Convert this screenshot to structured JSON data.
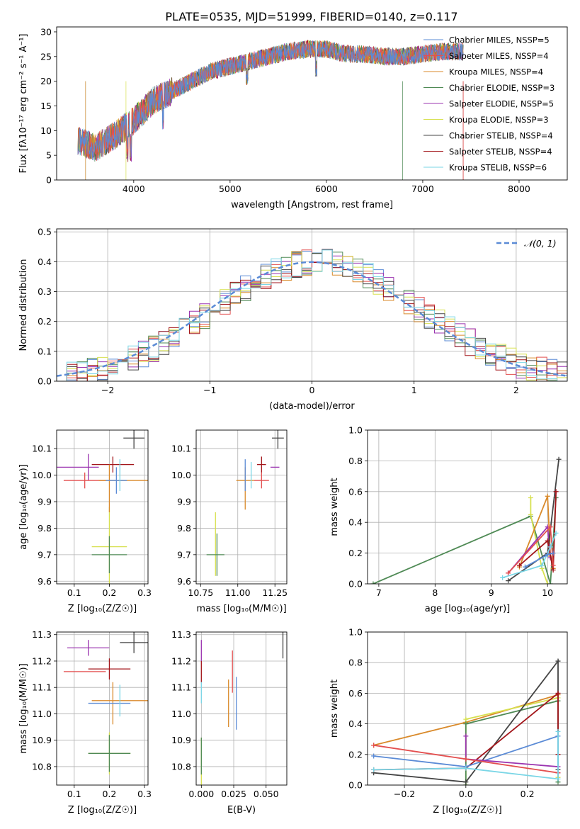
{
  "title": "PLATE=0535, MJD=51999, FIBERID=0140, z=0.117",
  "colors": [
    "#5b8bd6",
    "#e34f4f",
    "#d98a2b",
    "#4f8a55",
    "#9b34b0",
    "#d7e04f",
    "#444444",
    "#a3161b",
    "#7ad6e6"
  ],
  "chart_data": [
    {
      "id": "spectrum",
      "type": "line",
      "xlabel": "wavelength [Angstrom, rest frame]",
      "ylabel": "Flux [fλ10⁻¹⁷ erg cm⁻² s⁻¹ A⁻¹]",
      "xlim": [
        3200,
        8500
      ],
      "ylim": [
        0,
        31
      ],
      "xticks": [
        4000,
        5000,
        6000,
        7000,
        8000
      ],
      "yticks": [
        0,
        5,
        10,
        15,
        20,
        25,
        30
      ],
      "grid": false,
      "legend_position": "right",
      "series": [
        {
          "name": "Chabrier MILES, NSSP=5"
        },
        {
          "name": "Salpeter MILES, NSSP=4"
        },
        {
          "name": "Kroupa MILES, NSSP=4"
        },
        {
          "name": "Chabrier ELODIE, NSSP=3"
        },
        {
          "name": "Salpeter ELODIE, NSSP=5"
        },
        {
          "name": "Kroupa ELODIE, NSSP=3"
        },
        {
          "name": "Chabrier STELIB, NSSP=4"
        },
        {
          "name": "Salpeter STELIB, NSSP=4"
        },
        {
          "name": "Kroupa STELIB, NSSP=6"
        }
      ],
      "continuum_points": [
        [
          3420,
          8
        ],
        [
          3600,
          6.5
        ],
        [
          3800,
          9
        ],
        [
          4000,
          12
        ],
        [
          4200,
          16
        ],
        [
          4400,
          18
        ],
        [
          4600,
          20
        ],
        [
          4800,
          22
        ],
        [
          5000,
          23
        ],
        [
          5200,
          24
        ],
        [
          5400,
          25
        ],
        [
          5600,
          26
        ],
        [
          5800,
          26.5
        ],
        [
          6000,
          26.5
        ],
        [
          6200,
          25.5
        ],
        [
          6400,
          25.5
        ],
        [
          6600,
          25
        ],
        [
          6800,
          25
        ],
        [
          7000,
          25.5
        ],
        [
          7200,
          26
        ],
        [
          7420,
          26
        ]
      ]
    },
    {
      "id": "residuals",
      "type": "line",
      "xlabel": "(data-model)/error",
      "ylabel": "Normed distribution",
      "xlim": [
        -2.5,
        2.5
      ],
      "ylim": [
        0,
        0.51
      ],
      "xticks": [
        -2,
        -1,
        0,
        1,
        2
      ],
      "yticks": [
        0.0,
        0.1,
        0.2,
        0.3,
        0.4,
        0.5
      ],
      "grid": true,
      "legend_position": "top-right",
      "series": [
        {
          "name": "𝒩(0, 1)",
          "values": "gaussian"
        }
      ]
    },
    {
      "id": "age-vs-z",
      "type": "scatter",
      "xlabel": "Z [log₁₀(Z/Z☉)]",
      "ylabel": "age  [log₁₀(age/yr)]",
      "xlim": [
        0.05,
        0.31
      ],
      "ylim": [
        9.59,
        10.17
      ],
      "xticks": [
        0.1,
        0.2,
        0.3
      ],
      "yticks": [
        9.6,
        9.7,
        9.8,
        9.9,
        10.0,
        10.1
      ],
      "points": [
        {
          "x": 0.2,
          "y": 9.73,
          "xerr": 0.05,
          "yerr": 0.15,
          "c": 5
        },
        {
          "x": 0.2,
          "y": 9.7,
          "xerr": 0.05,
          "yerr": 0.07,
          "c": 3
        },
        {
          "x": 0.27,
          "y": 10.14,
          "xerr": 0.03,
          "yerr": 0.04,
          "c": 6
        },
        {
          "x": 0.11,
          "y": 10.03,
          "xerr": 0.06,
          "yerr": 0.0,
          "c": 4
        },
        {
          "x": 0.14,
          "y": 10.03,
          "xerr": 0.0,
          "yerr": 0.05,
          "c": 4
        },
        {
          "x": 0.13,
          "y": 9.98,
          "xerr": 0.06,
          "yerr": 0.03,
          "c": 1
        },
        {
          "x": 0.21,
          "y": 10.04,
          "xerr": 0.06,
          "yerr": 0.03,
          "c": 7
        },
        {
          "x": 0.24,
          "y": 9.98,
          "xerr": 0.07,
          "yerr": 0.0,
          "c": 2
        },
        {
          "x": 0.2,
          "y": 9.95,
          "xerr": 0.0,
          "yerr": 0.09,
          "c": 2
        },
        {
          "x": 0.22,
          "y": 9.98,
          "xerr": 0.03,
          "yerr": 0.05,
          "c": 0
        },
        {
          "x": 0.23,
          "y": 10.0,
          "xerr": 0.0,
          "yerr": 0.06,
          "c": 8
        }
      ]
    },
    {
      "id": "age-vs-mass",
      "type": "scatter",
      "xlabel": "mass [log₁₀(M/M☉)]",
      "xlim": [
        10.72,
        11.33
      ],
      "ylim": [
        9.59,
        10.17
      ],
      "xticks": [
        10.75,
        11.0,
        11.25
      ],
      "yticks": [
        9.6,
        9.7,
        9.8,
        9.9,
        10.0,
        10.1
      ],
      "points": [
        {
          "x": 10.85,
          "y": 9.74,
          "xerr": 0.0,
          "yerr": 0.12,
          "c": 5
        },
        {
          "x": 10.85,
          "y": 9.7,
          "xerr": 0.06,
          "yerr": 0.0,
          "c": 3
        },
        {
          "x": 10.86,
          "y": 9.7,
          "xerr": 0.0,
          "yerr": 0.08,
          "c": 3
        },
        {
          "x": 11.27,
          "y": 10.14,
          "xerr": 0.04,
          "yerr": 0.04,
          "c": 6
        },
        {
          "x": 11.25,
          "y": 10.03,
          "xerr": 0.03,
          "yerr": 0.0,
          "c": 4
        },
        {
          "x": 11.16,
          "y": 10.04,
          "xerr": 0.03,
          "yerr": 0.03,
          "c": 7
        },
        {
          "x": 11.16,
          "y": 9.98,
          "xerr": 0.05,
          "yerr": 0.03,
          "c": 1
        },
        {
          "x": 11.05,
          "y": 9.98,
          "xerr": 0.06,
          "yerr": 0.0,
          "c": 2
        },
        {
          "x": 11.05,
          "y": 9.95,
          "xerr": 0.0,
          "yerr": 0.08,
          "c": 2
        },
        {
          "x": 11.05,
          "y": 10.0,
          "xerr": 0.0,
          "yerr": 0.06,
          "c": 0
        },
        {
          "x": 11.09,
          "y": 10.0,
          "xerr": 0.0,
          "yerr": 0.05,
          "c": 8
        }
      ]
    },
    {
      "id": "weight-vs-age",
      "type": "line",
      "xlabel": "age  [log₁₀(age/yr)]",
      "ylabel": "mass weight",
      "xlim": [
        6.8,
        10.35
      ],
      "ylim": [
        0,
        1.0
      ],
      "xticks": [
        7,
        8,
        9,
        10
      ],
      "yticks": [
        0.0,
        0.2,
        0.4,
        0.6,
        0.8,
        1.0
      ],
      "grid": true,
      "series": [
        {
          "points": [
            [
              6.9,
              0.0
            ],
            [
              9.7,
              0.44
            ],
            [
              10.05,
              0.0
            ],
            [
              10.15,
              0.56
            ]
          ],
          "c": 3
        },
        {
          "points": [
            [
              9.7,
              0.56
            ],
            [
              9.7,
              0.45
            ],
            [
              9.9,
              0.1
            ],
            [
              10.0,
              0.0
            ]
          ],
          "c": 5
        },
        {
          "points": [
            [
              9.5,
              0.11
            ],
            [
              10.0,
              0.57
            ],
            [
              10.05,
              0.18
            ],
            [
              10.1,
              0.1
            ]
          ],
          "c": 2
        },
        {
          "points": [
            [
              9.3,
              0.07
            ],
            [
              10.0,
              0.37
            ],
            [
              10.05,
              0.17
            ]
          ],
          "c": 4
        },
        {
          "points": [
            [
              9.3,
              0.02
            ],
            [
              10.0,
              0.2
            ],
            [
              10.2,
              0.81
            ]
          ],
          "c": 6
        },
        {
          "points": [
            [
              9.5,
              0.12
            ],
            [
              10.0,
              0.28
            ],
            [
              10.1,
              0.09
            ],
            [
              10.15,
              0.6
            ]
          ],
          "c": 7
        },
        {
          "points": [
            [
              9.3,
              0.07
            ],
            [
              10.05,
              0.37
            ],
            [
              10.1,
              0.12
            ]
          ],
          "c": 1
        },
        {
          "points": [
            [
              9.2,
              0.04
            ],
            [
              9.9,
              0.12
            ],
            [
              10.05,
              0.24
            ],
            [
              10.15,
              0.33
            ]
          ],
          "c": 8
        },
        {
          "points": [
            [
              9.6,
              0.11
            ],
            [
              10.0,
              0.19
            ],
            [
              10.1,
              0.2
            ]
          ],
          "c": 0
        }
      ]
    },
    {
      "id": "mass-vs-z",
      "type": "scatter",
      "xlabel": "Z [log₁₀(Z/Z☉)]",
      "ylabel": "mass [log₁₀(M/M☉)]",
      "xlim": [
        0.05,
        0.31
      ],
      "ylim": [
        10.73,
        11.31
      ],
      "xticks": [
        0.1,
        0.2,
        0.3
      ],
      "yticks": [
        10.8,
        10.9,
        11.0,
        11.1,
        11.2,
        11.3
      ],
      "points": [
        {
          "x": 0.2,
          "y": 10.85,
          "xerr": 0.06,
          "yerr": 0.08,
          "c": 5
        },
        {
          "x": 0.2,
          "y": 10.85,
          "xerr": 0.06,
          "yerr": 0.07,
          "c": 3
        },
        {
          "x": 0.27,
          "y": 11.27,
          "xerr": 0.04,
          "yerr": 0.04,
          "c": 6
        },
        {
          "x": 0.14,
          "y": 11.25,
          "xerr": 0.06,
          "yerr": 0.03,
          "c": 4
        },
        {
          "x": 0.2,
          "y": 11.17,
          "xerr": 0.06,
          "yerr": 0.04,
          "c": 7
        },
        {
          "x": 0.13,
          "y": 11.16,
          "xerr": 0.06,
          "yerr": 0.0,
          "c": 1
        },
        {
          "x": 0.23,
          "y": 11.05,
          "xerr": 0.08,
          "yerr": 0.0,
          "c": 2
        },
        {
          "x": 0.21,
          "y": 11.04,
          "xerr": 0.0,
          "yerr": 0.08,
          "c": 2
        },
        {
          "x": 0.2,
          "y": 11.04,
          "xerr": 0.06,
          "yerr": 0.0,
          "c": 0
        },
        {
          "x": 0.23,
          "y": 11.05,
          "xerr": 0.0,
          "yerr": 0.06,
          "c": 8
        }
      ]
    },
    {
      "id": "mass-vs-ebv",
      "type": "scatter",
      "xlabel": "E(B-V)",
      "xlim": [
        -0.004,
        0.066
      ],
      "ylim": [
        10.73,
        11.31
      ],
      "xticks": [
        0.0,
        0.025,
        0.05
      ],
      "yticks": [
        10.8,
        10.9,
        11.0,
        11.1,
        11.2,
        11.3
      ],
      "points": [
        {
          "x": 0.0,
          "y": 10.82,
          "xerr": 0.0,
          "yerr": 0.09,
          "c": 5
        },
        {
          "x": 0.0,
          "y": 10.84,
          "xerr": 0.0,
          "yerr": 0.07,
          "c": 3
        },
        {
          "x": 0.0,
          "y": 11.24,
          "xerr": 0.0,
          "yerr": 0.04,
          "c": 4
        },
        {
          "x": 0.0,
          "y": 11.16,
          "xerr": 0.0,
          "yerr": 0.04,
          "c": 7
        },
        {
          "x": 0.0,
          "y": 11.08,
          "xerr": 0.0,
          "yerr": 0.04,
          "c": 8
        },
        {
          "x": 0.021,
          "y": 11.04,
          "xerr": 0.0,
          "yerr": 0.09,
          "c": 2
        },
        {
          "x": 0.024,
          "y": 11.16,
          "xerr": 0.0,
          "yerr": 0.08,
          "c": 1
        },
        {
          "x": 0.027,
          "y": 11.04,
          "xerr": 0.0,
          "yerr": 0.1,
          "c": 0
        },
        {
          "x": 0.063,
          "y": 11.26,
          "xerr": 0.0,
          "yerr": 0.05,
          "c": 6
        }
      ]
    },
    {
      "id": "weight-vs-z",
      "type": "line",
      "xlabel": "Z [log₁₀(Z/Z☉)]",
      "ylabel": "mass weight",
      "xlim": [
        -0.32,
        0.33
      ],
      "ylim": [
        0,
        1.0
      ],
      "xticks": [
        -0.2,
        0.0,
        0.2
      ],
      "yticks": [
        0.0,
        0.2,
        0.4,
        0.6,
        0.8,
        1.0
      ],
      "grid": true,
      "series": [
        {
          "points": [
            [
              -0.3,
              0.26
            ],
            [
              0.0,
              0.41
            ],
            [
              0.3,
              0.59
            ]
          ],
          "c": 2
        },
        {
          "points": [
            [
              0.0,
              0.0
            ],
            [
              0.0,
              0.43
            ],
            [
              0.3,
              0.57
            ],
            [
              0.3,
              0.05
            ]
          ],
          "c": 5
        },
        {
          "points": [
            [
              0.0,
              0.0
            ],
            [
              0.0,
              0.4
            ],
            [
              0.3,
              0.55
            ],
            [
              0.3,
              0.02
            ]
          ],
          "c": 3
        },
        {
          "points": [
            [
              -0.3,
              0.08
            ],
            [
              0.0,
              0.02
            ],
            [
              0.3,
              0.81
            ],
            [
              0.3,
              0.1
            ]
          ],
          "c": 6
        },
        {
          "points": [
            [
              -0.3,
              0.1
            ],
            [
              0.0,
              0.11
            ],
            [
              0.3,
              0.6
            ],
            [
              0.3,
              0.2
            ]
          ],
          "c": 7
        },
        {
          "points": [
            [
              -0.3,
              0.19
            ],
            [
              0.0,
              0.12
            ],
            [
              0.3,
              0.32
            ],
            [
              0.3,
              0.08
            ]
          ],
          "c": 0
        },
        {
          "points": [
            [
              0.0,
              0.32
            ],
            [
              0.0,
              0.17
            ],
            [
              0.3,
              0.12
            ],
            [
              0.3,
              0.08
            ]
          ],
          "c": 4
        },
        {
          "points": [
            [
              -0.3,
              0.26
            ],
            [
              0.0,
              0.17
            ],
            [
              0.3,
              0.08
            ]
          ],
          "c": 1
        },
        {
          "points": [
            [
              -0.3,
              0.1
            ],
            [
              0.0,
              0.11
            ],
            [
              0.3,
              0.04
            ],
            [
              0.3,
              0.35
            ]
          ],
          "c": 8
        }
      ]
    }
  ]
}
